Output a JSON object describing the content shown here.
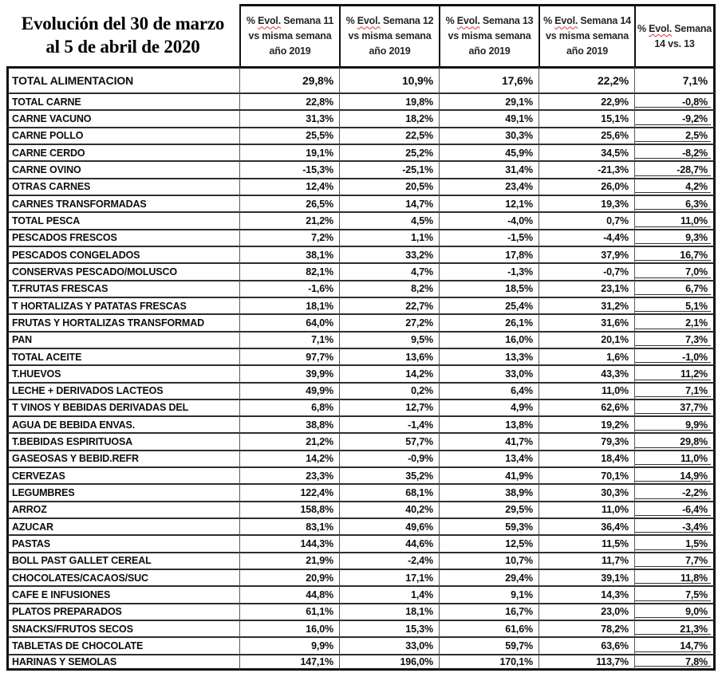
{
  "title": {
    "line1": "Evolución del 30 de marzo",
    "line2": "al 5 de abril de 2020"
  },
  "columns": [
    {
      "l1_pre": "% ",
      "l1_evol": "Evol.",
      "l1_post": " Semana 11",
      "l2": "vs misma semana",
      "l3": "año 2019"
    },
    {
      "l1_pre": "% ",
      "l1_evol": "Evol.",
      "l1_post": " Semana 12",
      "l2": "vs misma semana",
      "l3": "año 2019"
    },
    {
      "l1_pre": "% ",
      "l1_evol": "Evol.",
      "l1_post": " Semana 13",
      "l2": "vs misma semana",
      "l3": "año 2019"
    },
    {
      "l1_pre": "% ",
      "l1_evol": "Evol.",
      "l1_post": " Semana 14",
      "l2": "vs misma semana",
      "l3": "año 2019"
    },
    {
      "l1_pre": "% ",
      "l1_evol": "Evol.",
      "l1_post": " Semana",
      "l2": "14 vs. 13",
      "l3": ""
    }
  ],
  "total_row": {
    "label": "TOTAL ALIMENTACION",
    "values": [
      "29,8%",
      "10,9%",
      "17,6%",
      "22,2%",
      "7,1%"
    ]
  },
  "rows": [
    {
      "label": "TOTAL CARNE",
      "values": [
        "22,8%",
        "19,8%",
        "29,1%",
        "22,9%",
        "-0,8%"
      ]
    },
    {
      "label": "CARNE VACUNO",
      "values": [
        "31,3%",
        "18,2%",
        "49,1%",
        "15,1%",
        "-9,2%"
      ]
    },
    {
      "label": "CARNE POLLO",
      "values": [
        "25,5%",
        "22,5%",
        "30,3%",
        "25,6%",
        "2,5%"
      ]
    },
    {
      "label": "CARNE CERDO",
      "values": [
        "19,1%",
        "25,2%",
        "45,9%",
        "34,5%",
        "-8,2%"
      ]
    },
    {
      "label": "CARNE OVINO",
      "values": [
        "-15,3%",
        "-25,1%",
        "31,4%",
        "-21,3%",
        "-28,7%"
      ]
    },
    {
      "label": "OTRAS CARNES",
      "values": [
        "12,4%",
        "20,5%",
        "23,4%",
        "26,0%",
        "4,2%"
      ]
    },
    {
      "label": "CARNES TRANSFORMADAS",
      "values": [
        "26,5%",
        "14,7%",
        "12,1%",
        "19,3%",
        "6,3%"
      ]
    },
    {
      "label": "TOTAL PESCA",
      "values": [
        "21,2%",
        "4,5%",
        "-4,0%",
        "0,7%",
        "11,0%"
      ]
    },
    {
      "label": "PESCADOS FRESCOS",
      "values": [
        "7,2%",
        "1,1%",
        "-1,5%",
        "-4,4%",
        "9,3%"
      ]
    },
    {
      "label": "PESCADOS CONGELADOS",
      "values": [
        "38,1%",
        "33,2%",
        "17,8%",
        "37,9%",
        "16,7%"
      ]
    },
    {
      "label": "CONSERVAS PESCADO/MOLUSCO",
      "values": [
        "82,1%",
        "4,7%",
        "-1,3%",
        "-0,7%",
        "7,0%"
      ]
    },
    {
      "label": "T.FRUTAS FRESCAS",
      "values": [
        "-1,6%",
        "8,2%",
        "18,5%",
        "23,1%",
        "6,7%"
      ]
    },
    {
      "label": "T HORTALIZAS Y PATATAS FRESCAS",
      "values": [
        "18,1%",
        "22,7%",
        "25,4%",
        "31,2%",
        "5,1%"
      ]
    },
    {
      "label": "FRUTAS Y HORTALIZAS TRANSFORMAD",
      "values": [
        "64,0%",
        "27,2%",
        "26,1%",
        "31,6%",
        "2,1%"
      ]
    },
    {
      "label": "PAN",
      "values": [
        "7,1%",
        "9,5%",
        "16,0%",
        "20,1%",
        "7,3%"
      ]
    },
    {
      "label": "TOTAL ACEITE",
      "values": [
        "97,7%",
        "13,6%",
        "13,3%",
        "1,6%",
        "-1,0%"
      ]
    },
    {
      "label": "T.HUEVOS",
      "values": [
        "39,9%",
        "14,2%",
        "33,0%",
        "43,3%",
        "11,2%"
      ]
    },
    {
      "label": "LECHE + DERIVADOS LACTEOS",
      "values": [
        "49,9%",
        "0,2%",
        "6,4%",
        "11,0%",
        "7,1%"
      ]
    },
    {
      "label": "T VINOS Y BEBIDAS DERIVADAS DEL",
      "values": [
        "6,8%",
        "12,7%",
        "4,9%",
        "62,6%",
        "37,7%"
      ]
    },
    {
      "label": "AGUA DE BEBIDA ENVAS.",
      "values": [
        "38,8%",
        "-1,4%",
        "13,8%",
        "19,2%",
        "9,9%"
      ]
    },
    {
      "label": "T.BEBIDAS ESPIRITUOSA",
      "values": [
        "21,2%",
        "57,7%",
        "41,7%",
        "79,3%",
        "29,8%"
      ]
    },
    {
      "label": "GASEOSAS Y BEBID.REFR",
      "values": [
        "14,2%",
        "-0,9%",
        "13,4%",
        "18,4%",
        "11,0%"
      ]
    },
    {
      "label": "CERVEZAS",
      "values": [
        "23,3%",
        "35,2%",
        "41,9%",
        "70,1%",
        "14,9%"
      ]
    },
    {
      "label": "LEGUMBRES",
      "values": [
        "122,4%",
        "68,1%",
        "38,9%",
        "30,3%",
        "-2,2%"
      ]
    },
    {
      "label": "ARROZ",
      "values": [
        "158,8%",
        "40,2%",
        "29,5%",
        "11,0%",
        "-6,4%"
      ]
    },
    {
      "label": "AZUCAR",
      "values": [
        "83,1%",
        "49,6%",
        "59,3%",
        "36,4%",
        "-3,4%"
      ]
    },
    {
      "label": "PASTAS",
      "values": [
        "144,3%",
        "44,6%",
        "12,5%",
        "11,5%",
        "1,5%"
      ]
    },
    {
      "label": "BOLL PAST GALLET CEREAL",
      "values": [
        "21,9%",
        "-2,4%",
        "10,7%",
        "11,7%",
        "7,7%"
      ]
    },
    {
      "label": "CHOCOLATES/CACAOS/SUC",
      "values": [
        "20,9%",
        "17,1%",
        "29,4%",
        "39,1%",
        "11,8%"
      ]
    },
    {
      "label": "CAFE E INFUSIONES",
      "values": [
        "44,8%",
        "1,4%",
        "9,1%",
        "14,3%",
        "7,5%"
      ]
    },
    {
      "label": "PLATOS PREPARADOS",
      "values": [
        "61,1%",
        "18,1%",
        "16,7%",
        "23,0%",
        "9,0%"
      ]
    },
    {
      "label": "SNACKS/FRUTOS SECOS",
      "values": [
        "16,0%",
        "15,3%",
        "61,6%",
        "78,2%",
        "21,3%"
      ]
    },
    {
      "label": "TABLETAS DE CHOCOLATE",
      "values": [
        "9,9%",
        "33,0%",
        "59,7%",
        "63,6%",
        "14,7%"
      ]
    },
    {
      "label": "HARINAS Y SEMOLAS",
      "values": [
        "147,1%",
        "196,0%",
        "170,1%",
        "113,7%",
        "7,8%"
      ]
    }
  ],
  "colors": {
    "outer_border": "#111111",
    "row_border": "#2e2e2e",
    "column_grid_line": "#5a5a5a",
    "spellcheck_squiggle": "#e03131",
    "header_text": "#262626",
    "body_text": "#0d0d0d",
    "background": "#ffffff"
  }
}
